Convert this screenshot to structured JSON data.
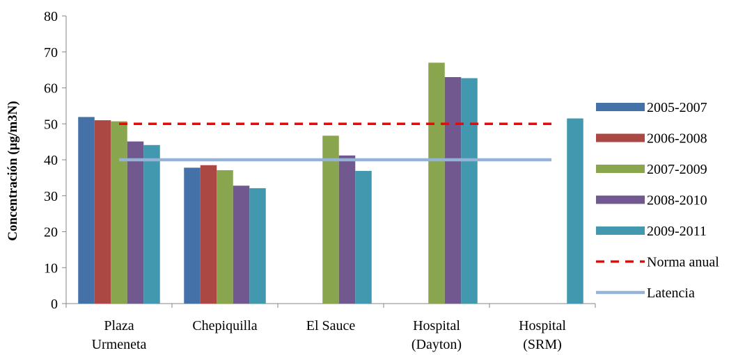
{
  "chart_data": {
    "type": "bar",
    "title": "",
    "xlabel": "",
    "ylabel": "Concentración (µg/m3N)",
    "ylim": [
      0,
      80
    ],
    "yticks": [
      0,
      10,
      20,
      30,
      40,
      50,
      60,
      70,
      80
    ],
    "grid": false,
    "legend_position": "right",
    "categories": [
      [
        "Plaza",
        "Urmeneta"
      ],
      [
        "Chepiquilla"
      ],
      [
        "El Sauce"
      ],
      [
        "Hospital",
        "(Dayton)"
      ],
      [
        "Hospital",
        "(SRM)"
      ]
    ],
    "series": [
      {
        "name": "2005-2007",
        "color": "#4472a8",
        "values": [
          51.9,
          37.8,
          null,
          null,
          null
        ]
      },
      {
        "name": "2006-2008",
        "color": "#ab4843",
        "values": [
          51.0,
          38.5,
          null,
          null,
          null
        ]
      },
      {
        "name": "2007-2009",
        "color": "#89a54e",
        "values": [
          50.7,
          37.1,
          46.7,
          67.0,
          null
        ]
      },
      {
        "name": "2008-2010",
        "color": "#71588f",
        "values": [
          45.1,
          32.8,
          41.2,
          63.0,
          null
        ]
      },
      {
        "name": "2009-2011",
        "color": "#4198af",
        "values": [
          44.1,
          32.1,
          36.9,
          62.7,
          51.5
        ]
      }
    ],
    "reference_lines": [
      {
        "name": "Norma anual",
        "value": 50,
        "color": "#ff0000",
        "style": "dashed"
      },
      {
        "name": "Latencia",
        "value": 40,
        "color": "#95b3d7",
        "style": "solid"
      }
    ]
  }
}
